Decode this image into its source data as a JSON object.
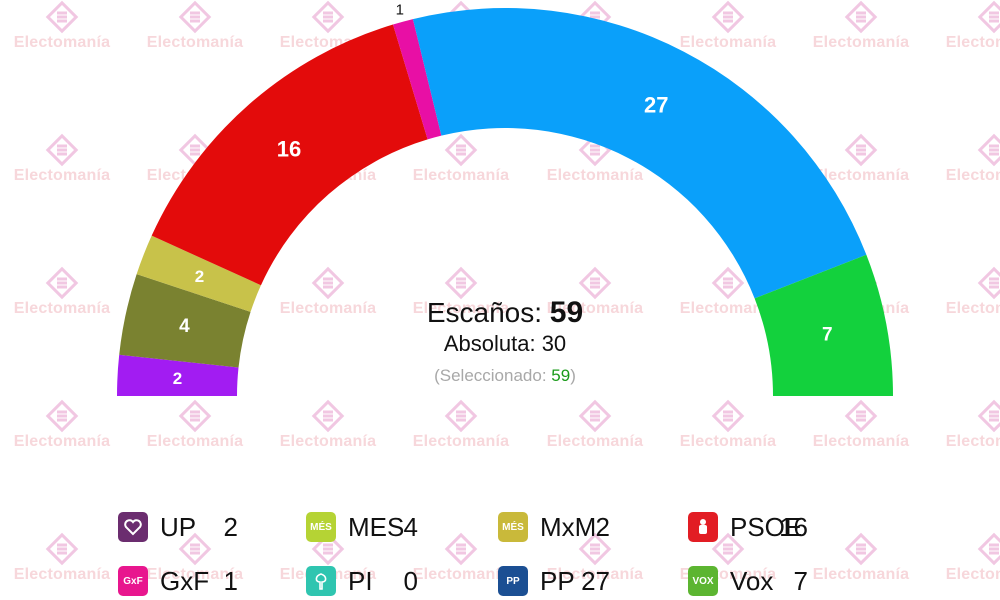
{
  "watermark_text": "Electomanía",
  "center": {
    "seats_label": "Escaños:",
    "seats_value": "59",
    "majority_label": "Absoluta:",
    "majority_value": "30",
    "selected_label": "(Seleccionado:",
    "selected_value": "59",
    "selected_close": ")"
  },
  "chart_data": {
    "type": "parliament-hemicycle",
    "total_seats": 59,
    "majority": 30,
    "seats": [
      {
        "party": "UP",
        "seats": 2,
        "color": "#a21cf2",
        "label": "2"
      },
      {
        "party": "MES",
        "seats": 4,
        "color": "#7a8230",
        "label": "4"
      },
      {
        "party": "MxM",
        "seats": 2,
        "color": "#c8c24a",
        "label": "2"
      },
      {
        "party": "PSOE",
        "seats": 16,
        "color": "#e30b0b",
        "label": "16"
      },
      {
        "party": "GxF",
        "seats": 1,
        "color": "#e80fa5",
        "label": "1"
      },
      {
        "party": "PP",
        "seats": 27,
        "color": "#0aa0fa",
        "label": "27"
      },
      {
        "party": "Vox",
        "seats": 7,
        "color": "#13d13d",
        "label": "7"
      }
    ]
  },
  "legend": [
    {
      "name": "UP",
      "seats": "2",
      "color": "#6b2d6f",
      "icon": "heart-icon"
    },
    {
      "name": "MES",
      "seats": "4",
      "color": "#b5d334",
      "icon": "mes-logo-icon",
      "icon_text": "MÉS"
    },
    {
      "name": "MxM",
      "seats": "2",
      "color": "#c9b93a",
      "icon": "mes-menorca-logo-icon",
      "icon_text": "MÉS"
    },
    {
      "name": "PSOE",
      "seats": "16",
      "color": "#e21d24",
      "icon": "rose-fist-icon"
    },
    {
      "name": "GxF",
      "seats": "1",
      "color": "#e8168e",
      "icon": "gxf-logo-icon",
      "icon_text": "GxF"
    },
    {
      "name": "PI",
      "seats": "0",
      "color": "#2fc5b0",
      "icon": "tree-icon"
    },
    {
      "name": "PP",
      "seats": "27",
      "color": "#1b4f93",
      "icon": "pp-logo-icon",
      "icon_text": "PP"
    },
    {
      "name": "Vox",
      "seats": "7",
      "color": "#5cb531",
      "icon": "vox-logo-icon",
      "icon_text": "VOX"
    }
  ]
}
